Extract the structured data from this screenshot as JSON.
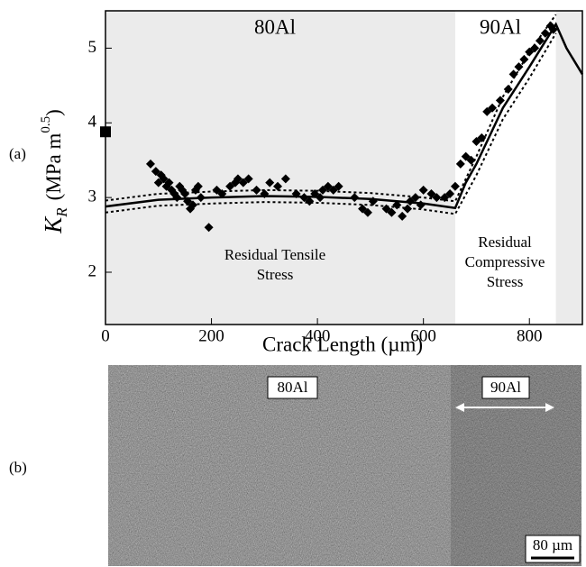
{
  "chart_data": {
    "type": "scatter",
    "panel_label": "(a)",
    "y_label": {
      "main": "K",
      "sub": "R",
      "unit": "(MPa m",
      "sup": "0.5",
      "close": ")"
    },
    "x_label": "Crack Length (µm)",
    "xlim": [
      0,
      900
    ],
    "ylim": [
      1.3,
      5.5
    ],
    "xticks": [
      0,
      200,
      400,
      600,
      800
    ],
    "yticks": [
      2,
      3,
      4,
      5
    ],
    "shaded_regions": [
      {
        "from": 0,
        "to": 660
      },
      {
        "from": 850,
        "to": 900
      }
    ],
    "shade_color": "#ebebeb",
    "color": "#000000",
    "region_labels": [
      "80Al",
      "90Al"
    ],
    "annotations": [
      [
        "Residual Tensile",
        "Stress"
      ],
      [
        "Residual",
        "Compressive",
        "Stress"
      ]
    ],
    "points": {
      "x": [
        85,
        95,
        100,
        105,
        110,
        115,
        120,
        125,
        130,
        135,
        140,
        145,
        150,
        155,
        160,
        165,
        170,
        175,
        180,
        195,
        210,
        220,
        235,
        245,
        250,
        260,
        270,
        285,
        300,
        310,
        325,
        340,
        360,
        375,
        385,
        395,
        405,
        410,
        420,
        430,
        440,
        470,
        485,
        495,
        505,
        530,
        540,
        550,
        560,
        570,
        575,
        585,
        595,
        600,
        615,
        625,
        640,
        650,
        660,
        670,
        680,
        690,
        700,
        710,
        720,
        730,
        745,
        760,
        770,
        780,
        790,
        800,
        810,
        820,
        830,
        840,
        845
      ],
      "values": [
        3.45,
        3.35,
        3.2,
        3.3,
        3.25,
        3.15,
        3.2,
        3.1,
        3.05,
        3.0,
        3.15,
        3.1,
        3.05,
        2.95,
        2.85,
        2.9,
        3.1,
        3.15,
        3.0,
        2.6,
        3.1,
        3.05,
        3.15,
        3.2,
        3.25,
        3.2,
        3.25,
        3.1,
        3.05,
        3.2,
        3.15,
        3.25,
        3.05,
        3.0,
        2.95,
        3.05,
        3.0,
        3.1,
        3.15,
        3.1,
        3.15,
        3.0,
        2.85,
        2.8,
        2.95,
        2.85,
        2.8,
        2.9,
        2.75,
        2.85,
        2.95,
        3.0,
        2.9,
        3.1,
        3.05,
        3.0,
        3.0,
        3.05,
        3.15,
        3.45,
        3.55,
        3.5,
        3.75,
        3.8,
        4.15,
        4.2,
        4.3,
        4.45,
        4.65,
        4.75,
        4.85,
        4.95,
        5.0,
        5.1,
        5.2,
        5.3,
        5.25
      ]
    },
    "square_point": {
      "x": 0,
      "value": 3.88
    },
    "fit": {
      "x": [
        0,
        100,
        200,
        300,
        400,
        500,
        600,
        660,
        680,
        700,
        750,
        800,
        850,
        870,
        900
      ],
      "values": [
        2.88,
        2.97,
        3.0,
        3.02,
        3.01,
        2.98,
        2.92,
        2.86,
        3.2,
        3.45,
        4.2,
        4.75,
        5.32,
        5.0,
        4.65
      ]
    },
    "bounds": {
      "x": [
        0,
        100,
        200,
        300,
        400,
        500,
        600,
        660,
        700,
        750,
        800,
        850
      ],
      "upper": [
        2.96,
        3.05,
        3.08,
        3.1,
        3.09,
        3.06,
        3.0,
        2.95,
        3.55,
        4.35,
        4.95,
        5.45
      ],
      "lower": [
        2.8,
        2.89,
        2.92,
        2.94,
        2.93,
        2.9,
        2.84,
        2.78,
        3.3,
        4.05,
        4.6,
        5.2
      ]
    }
  },
  "micrograph": {
    "panel_label": "(b)",
    "labels": [
      "80Al",
      "90Al"
    ],
    "scale_bar": "80 µm"
  }
}
